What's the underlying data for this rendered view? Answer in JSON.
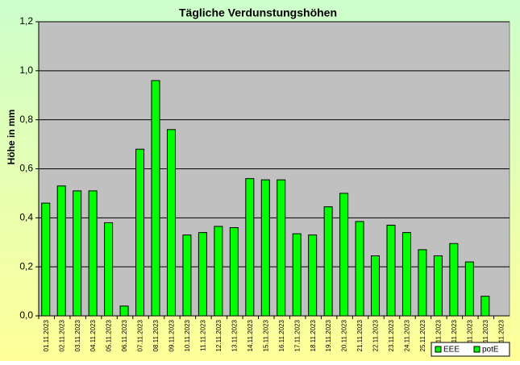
{
  "chart_data": {
    "type": "bar",
    "title": "Tägliche Verdunstungshöhen",
    "y_label": "Höhe in mm",
    "categories": [
      "01.11.2023",
      "02.11.2023",
      "03.11.2023",
      "04.11.2023",
      "05.11.2023",
      "06.11.2023",
      "07.11.2023",
      "08.11.2023",
      "09.11.2023",
      "10.11.2023",
      "11.11.2023",
      "12.11.2023",
      "13.11.2023",
      "14.11.2023",
      "15.11.2023",
      "16.11.2023",
      "17.11.2023",
      "18.11.2023",
      "19.11.2023",
      "20.11.2023",
      "21.11.2023",
      "22.11.2023",
      "23.11.2023",
      "24.11.2023",
      "25.11.2023",
      "26.11.2023",
      "27.11.2023",
      "28.11.2023",
      "29.11.2023",
      "30.11.2023"
    ],
    "series": [
      {
        "name": "EEE",
        "color": "#00ff00",
        "values": [
          null,
          null,
          null,
          null,
          null,
          null,
          null,
          null,
          null,
          null,
          null,
          null,
          null,
          null,
          null,
          null,
          null,
          null,
          null,
          null,
          null,
          null,
          null,
          null,
          null,
          null,
          null,
          null,
          null,
          null
        ]
      },
      {
        "name": "potE",
        "color": "#00ff00",
        "values": [
          0.46,
          0.53,
          0.51,
          0.51,
          0.38,
          0.04,
          0.68,
          0.96,
          0.76,
          0.33,
          0.34,
          0.365,
          0.36,
          0.56,
          0.555,
          0.555,
          0.335,
          0.33,
          0.445,
          0.5,
          0.385,
          0.245,
          0.37,
          0.34,
          0.27,
          0.245,
          0.295,
          0.22,
          0.08,
          null
        ]
      }
    ],
    "ylim": [
      0,
      1.2
    ],
    "yticks": [
      {
        "value": 0,
        "label": "0,0"
      },
      {
        "value": 0.2,
        "label": "0,2"
      },
      {
        "value": 0.4,
        "label": "0,4"
      },
      {
        "value": 0.6,
        "label": "0,6"
      },
      {
        "value": 0.8,
        "label": "0,8"
      },
      {
        "value": 1.0,
        "label": "1,0"
      },
      {
        "value": 1.2,
        "label": "1,2"
      }
    ],
    "grid": true,
    "legend": "bottom-right"
  }
}
